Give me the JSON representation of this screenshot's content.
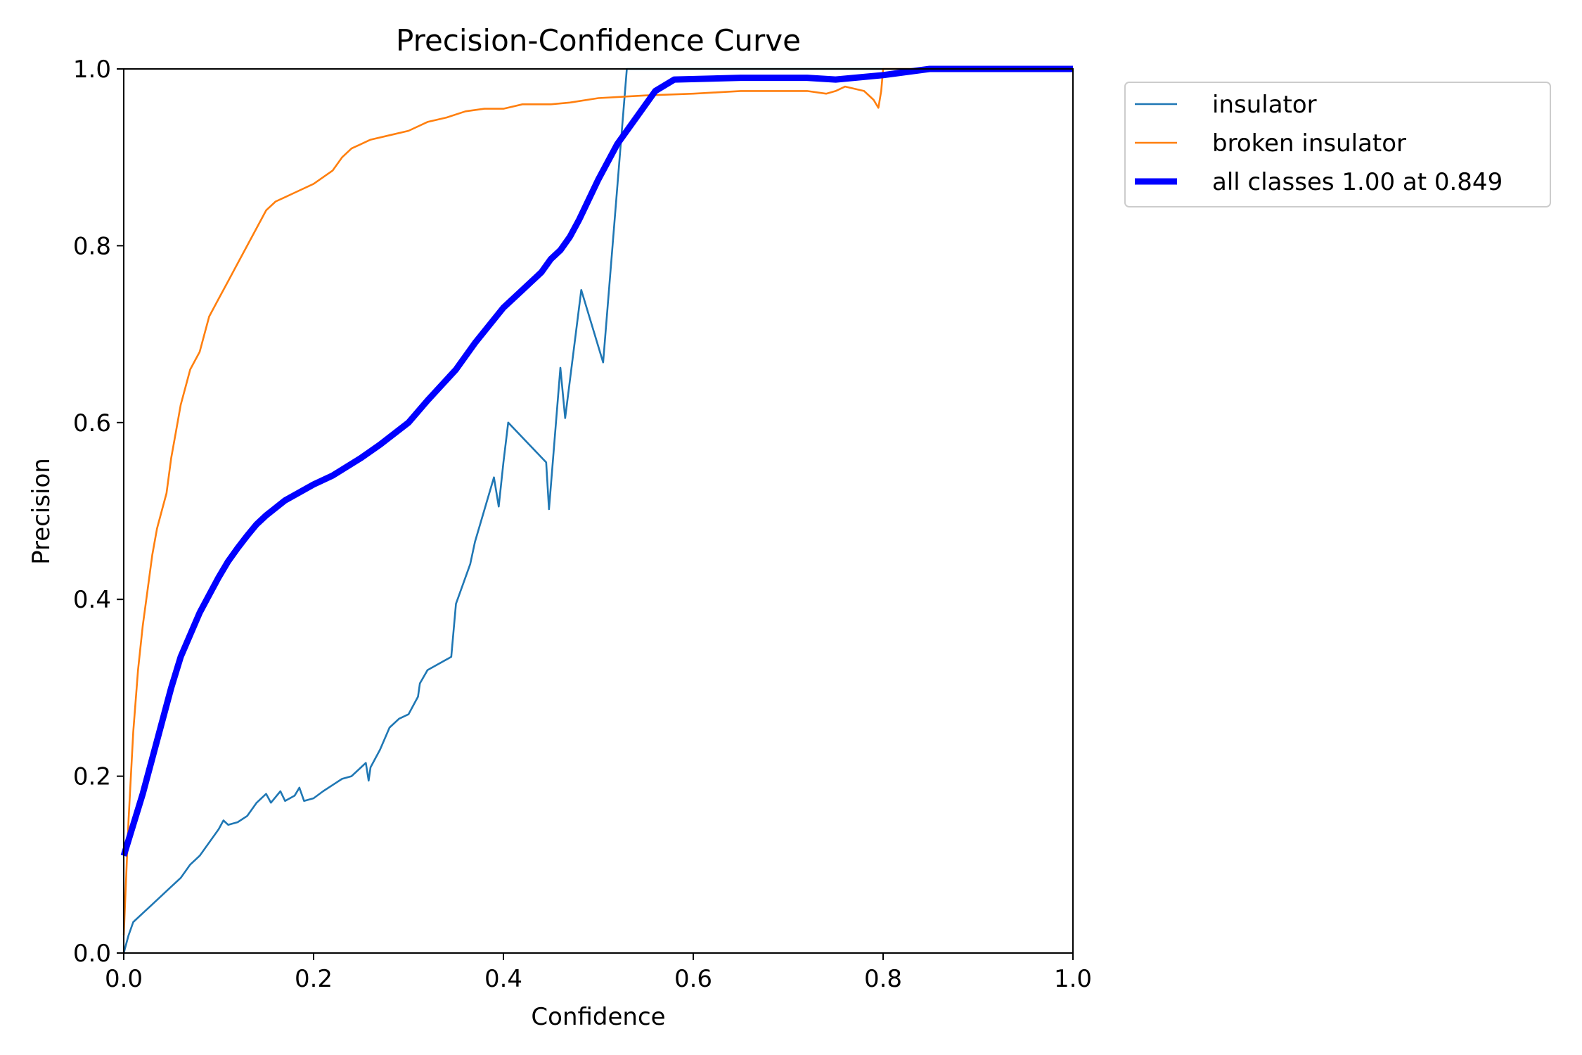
{
  "chart_data": {
    "type": "line",
    "title": "Precision-Confidence Curve",
    "xlabel": "Confidence",
    "ylabel": "Precision",
    "xlim": [
      0,
      1
    ],
    "ylim": [
      0,
      1
    ],
    "xticks": [
      "0.0",
      "0.2",
      "0.4",
      "0.6",
      "0.8",
      "1.0"
    ],
    "yticks": [
      "0.0",
      "0.2",
      "0.4",
      "0.6",
      "0.8",
      "1.0"
    ],
    "grid": false,
    "legend_position": "outside-top-right",
    "series": [
      {
        "name": "insulator",
        "color": "#1f77b4",
        "width": "thin",
        "points": [
          [
            0.0,
            0.0
          ],
          [
            0.005,
            0.02
          ],
          [
            0.01,
            0.035
          ],
          [
            0.02,
            0.045
          ],
          [
            0.03,
            0.055
          ],
          [
            0.04,
            0.065
          ],
          [
            0.05,
            0.075
          ],
          [
            0.06,
            0.085
          ],
          [
            0.07,
            0.1
          ],
          [
            0.08,
            0.11
          ],
          [
            0.09,
            0.125
          ],
          [
            0.1,
            0.14
          ],
          [
            0.105,
            0.15
          ],
          [
            0.11,
            0.145
          ],
          [
            0.12,
            0.148
          ],
          [
            0.13,
            0.155
          ],
          [
            0.14,
            0.17
          ],
          [
            0.15,
            0.18
          ],
          [
            0.155,
            0.17
          ],
          [
            0.165,
            0.183
          ],
          [
            0.17,
            0.172
          ],
          [
            0.18,
            0.178
          ],
          [
            0.185,
            0.187
          ],
          [
            0.19,
            0.172
          ],
          [
            0.2,
            0.175
          ],
          [
            0.21,
            0.183
          ],
          [
            0.22,
            0.19
          ],
          [
            0.23,
            0.197
          ],
          [
            0.24,
            0.2
          ],
          [
            0.25,
            0.21
          ],
          [
            0.255,
            0.215
          ],
          [
            0.258,
            0.195
          ],
          [
            0.26,
            0.21
          ],
          [
            0.27,
            0.23
          ],
          [
            0.28,
            0.255
          ],
          [
            0.29,
            0.265
          ],
          [
            0.3,
            0.27
          ],
          [
            0.31,
            0.29
          ],
          [
            0.312,
            0.305
          ],
          [
            0.32,
            0.32
          ],
          [
            0.345,
            0.335
          ],
          [
            0.35,
            0.395
          ],
          [
            0.355,
            0.41
          ],
          [
            0.365,
            0.44
          ],
          [
            0.37,
            0.465
          ],
          [
            0.39,
            0.538
          ],
          [
            0.395,
            0.505
          ],
          [
            0.4,
            0.555
          ],
          [
            0.405,
            0.6
          ],
          [
            0.445,
            0.555
          ],
          [
            0.448,
            0.502
          ],
          [
            0.46,
            0.662
          ],
          [
            0.465,
            0.605
          ],
          [
            0.482,
            0.75
          ],
          [
            0.505,
            0.668
          ],
          [
            0.53,
            1.0
          ],
          [
            1.0,
            1.0
          ]
        ]
      },
      {
        "name": "broken insulator",
        "color": "#ff7f0e",
        "width": "thin",
        "points": [
          [
            0.0,
            0.02
          ],
          [
            0.005,
            0.15
          ],
          [
            0.01,
            0.25
          ],
          [
            0.015,
            0.32
          ],
          [
            0.02,
            0.37
          ],
          [
            0.025,
            0.41
          ],
          [
            0.03,
            0.45
          ],
          [
            0.035,
            0.48
          ],
          [
            0.04,
            0.5
          ],
          [
            0.045,
            0.52
          ],
          [
            0.05,
            0.56
          ],
          [
            0.055,
            0.59
          ],
          [
            0.06,
            0.62
          ],
          [
            0.065,
            0.64
          ],
          [
            0.07,
            0.66
          ],
          [
            0.08,
            0.68
          ],
          [
            0.09,
            0.72
          ],
          [
            0.1,
            0.74
          ],
          [
            0.11,
            0.76
          ],
          [
            0.12,
            0.78
          ],
          [
            0.13,
            0.8
          ],
          [
            0.14,
            0.82
          ],
          [
            0.15,
            0.84
          ],
          [
            0.16,
            0.85
          ],
          [
            0.17,
            0.855
          ],
          [
            0.18,
            0.86
          ],
          [
            0.2,
            0.87
          ],
          [
            0.22,
            0.885
          ],
          [
            0.23,
            0.9
          ],
          [
            0.24,
            0.91
          ],
          [
            0.26,
            0.92
          ],
          [
            0.28,
            0.925
          ],
          [
            0.3,
            0.93
          ],
          [
            0.32,
            0.94
          ],
          [
            0.34,
            0.945
          ],
          [
            0.36,
            0.952
          ],
          [
            0.38,
            0.955
          ],
          [
            0.4,
            0.955
          ],
          [
            0.42,
            0.96
          ],
          [
            0.45,
            0.96
          ],
          [
            0.47,
            0.962
          ],
          [
            0.5,
            0.967
          ],
          [
            0.55,
            0.97
          ],
          [
            0.6,
            0.972
          ],
          [
            0.65,
            0.975
          ],
          [
            0.7,
            0.975
          ],
          [
            0.72,
            0.975
          ],
          [
            0.74,
            0.972
          ],
          [
            0.75,
            0.975
          ],
          [
            0.76,
            0.98
          ],
          [
            0.78,
            0.975
          ],
          [
            0.79,
            0.965
          ],
          [
            0.795,
            0.956
          ],
          [
            0.798,
            0.975
          ],
          [
            0.8,
            1.0
          ],
          [
            1.0,
            1.0
          ]
        ]
      },
      {
        "name": "all classes 1.00 at 0.849",
        "color": "#0000ff",
        "width": "thick",
        "points": [
          [
            0.0,
            0.11
          ],
          [
            0.01,
            0.145
          ],
          [
            0.02,
            0.18
          ],
          [
            0.03,
            0.22
          ],
          [
            0.04,
            0.26
          ],
          [
            0.05,
            0.3
          ],
          [
            0.06,
            0.335
          ],
          [
            0.07,
            0.36
          ],
          [
            0.08,
            0.385
          ],
          [
            0.09,
            0.405
          ],
          [
            0.1,
            0.425
          ],
          [
            0.11,
            0.443
          ],
          [
            0.12,
            0.458
          ],
          [
            0.13,
            0.472
          ],
          [
            0.14,
            0.485
          ],
          [
            0.15,
            0.495
          ],
          [
            0.17,
            0.512
          ],
          [
            0.2,
            0.53
          ],
          [
            0.22,
            0.54
          ],
          [
            0.25,
            0.56
          ],
          [
            0.27,
            0.575
          ],
          [
            0.3,
            0.6
          ],
          [
            0.32,
            0.625
          ],
          [
            0.35,
            0.66
          ],
          [
            0.37,
            0.69
          ],
          [
            0.4,
            0.73
          ],
          [
            0.42,
            0.75
          ],
          [
            0.44,
            0.77
          ],
          [
            0.45,
            0.785
          ],
          [
            0.46,
            0.795
          ],
          [
            0.47,
            0.81
          ],
          [
            0.48,
            0.83
          ],
          [
            0.5,
            0.875
          ],
          [
            0.52,
            0.915
          ],
          [
            0.54,
            0.945
          ],
          [
            0.56,
            0.975
          ],
          [
            0.58,
            0.988
          ],
          [
            0.65,
            0.99
          ],
          [
            0.72,
            0.99
          ],
          [
            0.75,
            0.988
          ],
          [
            0.8,
            0.993
          ],
          [
            0.849,
            1.0
          ],
          [
            1.0,
            1.0
          ]
        ]
      }
    ]
  }
}
